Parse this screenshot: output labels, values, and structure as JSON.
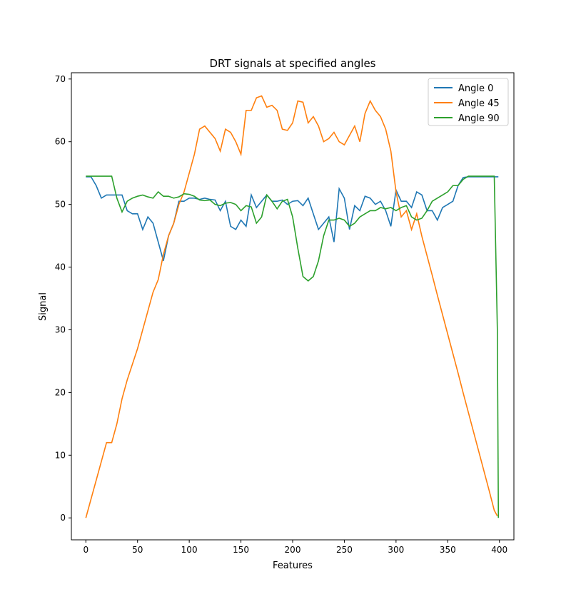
{
  "chart_data": {
    "type": "line",
    "title": "DRT signals at specified angles",
    "x_label": "Features",
    "y_label": "Signal",
    "x": [
      0,
      5,
      10,
      15,
      20,
      25,
      30,
      35,
      40,
      45,
      50,
      55,
      60,
      65,
      70,
      75,
      80,
      85,
      90,
      95,
      100,
      105,
      110,
      115,
      120,
      125,
      130,
      135,
      140,
      145,
      150,
      155,
      160,
      165,
      170,
      175,
      180,
      185,
      190,
      195,
      200,
      205,
      210,
      215,
      220,
      225,
      230,
      235,
      240,
      245,
      250,
      255,
      260,
      265,
      270,
      275,
      280,
      285,
      290,
      295,
      300,
      305,
      310,
      315,
      320,
      325,
      330,
      335,
      340,
      345,
      350,
      355,
      360,
      365,
      370,
      375,
      380,
      385,
      390,
      395,
      398,
      399
    ],
    "series": [
      {
        "name": "Angle 0",
        "color": "#1f77b4",
        "values": [
          54.4,
          54.4,
          53,
          51,
          51.5,
          51.5,
          51.5,
          51.5,
          49,
          48.5,
          48.5,
          46,
          48,
          47,
          44,
          41,
          45,
          47,
          50.5,
          50.5,
          51,
          51,
          50.8,
          51,
          50.8,
          50.7,
          49,
          50.5,
          46.5,
          46,
          47.5,
          46.5,
          51.5,
          49.5,
          50.5,
          51.5,
          50.5,
          50.5,
          50.7,
          50,
          50.5,
          50.6,
          49.8,
          51,
          48.5,
          46,
          47,
          48,
          44,
          52.5,
          51,
          46,
          49.8,
          49,
          51.3,
          51,
          50,
          50.5,
          49,
          46.5,
          52.3,
          50.5,
          50.5,
          49.5,
          52,
          51.5,
          49,
          49,
          47.5,
          49.5,
          50,
          50.5,
          53,
          54.3,
          54.4,
          54.4,
          54.4,
          54.4,
          54.4,
          54.4,
          54.4,
          54.4
        ]
      },
      {
        "name": "Angle 45",
        "color": "#ff7f0e",
        "values": [
          0,
          3,
          6,
          9,
          12,
          12,
          15,
          19,
          22,
          24.5,
          27,
          30,
          33,
          36,
          38,
          42,
          45,
          47,
          50,
          52,
          55,
          58,
          62,
          62.5,
          61.5,
          60.5,
          58.5,
          62,
          61.5,
          60,
          58,
          65,
          65,
          67,
          67.3,
          65.5,
          65.8,
          65,
          62,
          61.8,
          63,
          66.5,
          66.3,
          63,
          64,
          62.5,
          60,
          60.5,
          61.5,
          60,
          59.5,
          61,
          62.5,
          60,
          64.5,
          66.5,
          65,
          64,
          62,
          58.5,
          52,
          48,
          49,
          46,
          48.5,
          44.9,
          41.8,
          38.7,
          35.5,
          32.4,
          29.3,
          26.2,
          23.1,
          19.9,
          16.8,
          13.7,
          10.6,
          7.5,
          4.4,
          1.2,
          0.3,
          null
        ]
      },
      {
        "name": "Angle 90",
        "color": "#2ca02c",
        "values": [
          54.5,
          54.5,
          54.5,
          54.5,
          54.5,
          54.5,
          51,
          48.8,
          50.5,
          51,
          51.3,
          51.5,
          51.2,
          51,
          52,
          51.3,
          51.3,
          51,
          51.2,
          51.7,
          51.6,
          51.3,
          50.7,
          50.6,
          50.7,
          50,
          49.8,
          50.2,
          50.3,
          50,
          49,
          49.8,
          49.6,
          47,
          48,
          51.5,
          50.5,
          49.3,
          50.5,
          50.8,
          48,
          43,
          38.5,
          37.8,
          38.5,
          41,
          45,
          47.5,
          47.5,
          47.8,
          47.5,
          46.5,
          47,
          48,
          48.5,
          49,
          49,
          49.5,
          49.3,
          49.5,
          49,
          49.5,
          49.8,
          48,
          47.5,
          47.8,
          49,
          50.5,
          51,
          51.5,
          52,
          53,
          53,
          54,
          54.5,
          54.5,
          54.5,
          54.5,
          54.5,
          54.5,
          30,
          0
        ]
      }
    ],
    "xlim": [
      -14,
      414
    ],
    "ylim": [
      -3.5,
      71
    ],
    "xticks": [
      0,
      50,
      100,
      150,
      200,
      250,
      300,
      350,
      400
    ],
    "yticks": [
      0,
      10,
      20,
      30,
      40,
      50,
      60,
      70
    ],
    "legend": "upper right"
  }
}
